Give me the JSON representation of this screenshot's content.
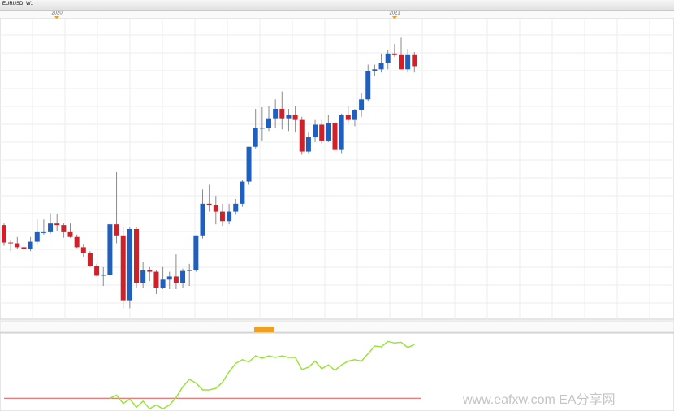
{
  "toolbar": {
    "symbol": "EURUSD",
    "period": "W1"
  },
  "timeline": {
    "markers": [
      "2020",
      "2021"
    ]
  },
  "watermark": "www.eafxw.com  EA分享网",
  "chart_data": [
    {
      "type": "candlestick",
      "up_color": "#1f5fbf",
      "down_color": "#d0202a",
      "wick_color": "#8a8a8a",
      "ylim": [
        1.057,
        1.247
      ],
      "grid": true,
      "ohlc": [
        [
          1.1165,
          1.1175,
          1.1035,
          1.1055
        ],
        [
          1.1055,
          1.107,
          1.1,
          1.105
        ],
        [
          1.105,
          1.109,
          1.1015,
          1.1025
        ],
        [
          1.1025,
          1.106,
          1.0985,
          1.1015
        ],
        [
          1.1015,
          1.109,
          1.1,
          1.106
        ],
        [
          1.106,
          1.12,
          1.104,
          1.112
        ],
        [
          1.112,
          1.12,
          1.1105,
          1.112
        ],
        [
          1.112,
          1.124,
          1.111,
          1.1175
        ],
        [
          1.1175,
          1.1235,
          1.1125,
          1.1165
        ],
        [
          1.1165,
          1.118,
          1.1085,
          1.112
        ],
        [
          1.112,
          1.1175,
          1.1085,
          1.109
        ],
        [
          1.109,
          1.1105,
          1.102,
          1.1025
        ],
        [
          1.1025,
          1.1045,
          1.096,
          1.099
        ],
        [
          1.099,
          1.1,
          1.09,
          1.0905
        ],
        [
          1.0905,
          1.092,
          1.084,
          1.0845
        ],
        [
          1.0845,
          1.09,
          1.078,
          1.085
        ],
        [
          1.085,
          1.118,
          1.084,
          1.117
        ],
        [
          1.117,
          1.15,
          1.105,
          1.11
        ],
        [
          1.11,
          1.115,
          1.064,
          1.069
        ],
        [
          1.069,
          1.115,
          1.064,
          1.114
        ],
        [
          1.114,
          1.115,
          1.077,
          1.08
        ],
        [
          1.08,
          1.093,
          1.077,
          1.088
        ],
        [
          1.088,
          1.09,
          1.081,
          1.087
        ],
        [
          1.087,
          1.088,
          1.073,
          1.077
        ],
        [
          1.077,
          1.09,
          1.076,
          1.082
        ],
        [
          1.082,
          1.087,
          1.076,
          1.084
        ],
        [
          1.084,
          1.098,
          1.076,
          1.08
        ],
        [
          1.08,
          1.089,
          1.077,
          1.0875
        ],
        [
          1.0875,
          1.092,
          1.078,
          1.088
        ],
        [
          1.088,
          1.11,
          1.087,
          1.11
        ],
        [
          1.11,
          1.139,
          1.108,
          1.13
        ],
        [
          1.13,
          1.142,
          1.125,
          1.129
        ],
        [
          1.129,
          1.135,
          1.117,
          1.125
        ],
        [
          1.125,
          1.13,
          1.116,
          1.119
        ],
        [
          1.119,
          1.13,
          1.117,
          1.125
        ],
        [
          1.125,
          1.133,
          1.123,
          1.13
        ],
        [
          1.13,
          1.145,
          1.128,
          1.144
        ],
        [
          1.144,
          1.166,
          1.142,
          1.166
        ],
        [
          1.166,
          1.19,
          1.165,
          1.178
        ],
        [
          1.178,
          1.191,
          1.17,
          1.178
        ],
        [
          1.178,
          1.192,
          1.176,
          1.184
        ],
        [
          1.184,
          1.196,
          1.178,
          1.19
        ],
        [
          1.19,
          1.201,
          1.177,
          1.184
        ],
        [
          1.184,
          1.19,
          1.176,
          1.186
        ],
        [
          1.186,
          1.192,
          1.175,
          1.183
        ],
        [
          1.183,
          1.185,
          1.161,
          1.163
        ],
        [
          1.163,
          1.175,
          1.162,
          1.172
        ],
        [
          1.172,
          1.183,
          1.169,
          1.18
        ],
        [
          1.18,
          1.183,
          1.168,
          1.17
        ],
        [
          1.17,
          1.186,
          1.169,
          1.181
        ],
        [
          1.181,
          1.188,
          1.165,
          1.164
        ],
        [
          1.164,
          1.187,
          1.162,
          1.186
        ],
        [
          1.186,
          1.192,
          1.181,
          1.183
        ],
        [
          1.183,
          1.19,
          1.179,
          1.189
        ],
        [
          1.189,
          1.2,
          1.185,
          1.196
        ],
        [
          1.196,
          1.218,
          1.195,
          1.214
        ],
        [
          1.214,
          1.218,
          1.211,
          1.215
        ],
        [
          1.215,
          1.225,
          1.213,
          1.219
        ],
        [
          1.219,
          1.227,
          1.215,
          1.225
        ],
        [
          1.225,
          1.231,
          1.223,
          1.224
        ],
        [
          1.224,
          1.235,
          1.215,
          1.215
        ],
        [
          1.215,
          1.228,
          1.213,
          1.224
        ],
        [
          1.224,
          1.226,
          1.213,
          1.217
        ]
      ]
    },
    {
      "type": "line",
      "ylim": [
        0,
        100
      ],
      "hline": {
        "value": 17,
        "color": "#e05050"
      },
      "series": [
        {
          "color": "#9be33a",
          "values": [
            null,
            null,
            null,
            null,
            null,
            null,
            null,
            null,
            null,
            null,
            null,
            null,
            null,
            null,
            null,
            null,
            17,
            21,
            10,
            16,
            5,
            13,
            3,
            8,
            3,
            8,
            18,
            32,
            42,
            37,
            28,
            28,
            30,
            38,
            52,
            63,
            68,
            65,
            73,
            70,
            73,
            71,
            73,
            71,
            71,
            55,
            58,
            66,
            56,
            61,
            54,
            61,
            66,
            68,
            66,
            76,
            86,
            85,
            92,
            90,
            91,
            84,
            88
          ]
        }
      ]
    }
  ]
}
